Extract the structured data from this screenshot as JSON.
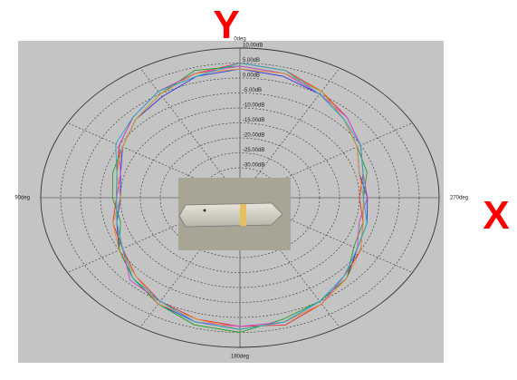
{
  "chart_data": {
    "type": "polar",
    "x_label": "X",
    "y_label": "Y",
    "x": [
      0,
      15,
      30,
      45,
      60,
      75,
      90,
      105,
      120,
      135,
      150,
      165,
      180,
      195,
      210,
      225,
      240,
      255,
      270,
      285,
      300,
      315,
      330,
      345
    ],
    "xticks": [
      {
        "value": 0,
        "label": "0deg"
      },
      {
        "value": 90,
        "label": "90deg"
      },
      {
        "value": 180,
        "label": "180deg"
      },
      {
        "value": 270,
        "label": "270deg"
      }
    ],
    "rlim": [
      -40,
      10
    ],
    "rticks": [
      {
        "value": 10,
        "label": "10.00dB"
      },
      {
        "value": 5,
        "label": "5.00dB"
      },
      {
        "value": 0,
        "label": "0.00dB"
      },
      {
        "value": -5,
        "label": "-5.00dB"
      },
      {
        "value": -10,
        "label": "-10.00dB"
      },
      {
        "value": -15,
        "label": "-15.00dB"
      },
      {
        "value": -20,
        "label": "-20.00dB"
      },
      {
        "value": -25,
        "label": "-25.00dB"
      },
      {
        "value": -30,
        "label": "-30.00dB"
      }
    ],
    "series": [
      {
        "color": "#3030e0",
        "values": [
          3,
          2,
          -1,
          -3,
          -6,
          -9,
          -10,
          -8,
          -5,
          -2,
          1,
          3,
          4,
          3,
          0,
          -2,
          -6,
          -7,
          -8,
          -9,
          -6,
          -3,
          0,
          2
        ]
      },
      {
        "color": "#e03030",
        "values": [
          5,
          3,
          1,
          -2,
          -5,
          -8,
          -9,
          -7,
          -6,
          -3,
          0,
          2,
          3,
          4,
          1,
          -3,
          -5,
          -8,
          -10,
          -8,
          -5,
          -2,
          1,
          4
        ]
      },
      {
        "color": "#20a020",
        "values": [
          4,
          4,
          0,
          -3,
          -6,
          -7,
          -8,
          -9,
          -5,
          -2,
          1,
          4,
          5,
          2,
          0,
          -2,
          -7,
          -8,
          -9,
          -7,
          -6,
          -3,
          1,
          3
        ]
      },
      {
        "color": "#d040d0",
        "values": [
          4,
          3,
          1,
          -2,
          -5,
          -9,
          -9,
          -8,
          -6,
          -1,
          0,
          3,
          3,
          3,
          1,
          -3,
          -6,
          -9,
          -8,
          -8,
          -5,
          -2,
          0,
          3
        ]
      },
      {
        "color": "#e09030",
        "values": [
          3,
          3,
          0,
          -3,
          -6,
          -8,
          -10,
          -7,
          -5,
          -3,
          1,
          2,
          4,
          3,
          1,
          -2,
          -5,
          -8,
          -9,
          -9,
          -6,
          -3,
          1,
          3
        ]
      },
      {
        "color": "#20b0c0",
        "values": [
          5,
          2,
          1,
          -2,
          -4,
          -8,
          -9,
          -8,
          -6,
          -2,
          0,
          3,
          4,
          3,
          0,
          -3,
          -6,
          -7,
          -9,
          -8,
          -5,
          -3,
          0,
          4
        ]
      }
    ]
  }
}
